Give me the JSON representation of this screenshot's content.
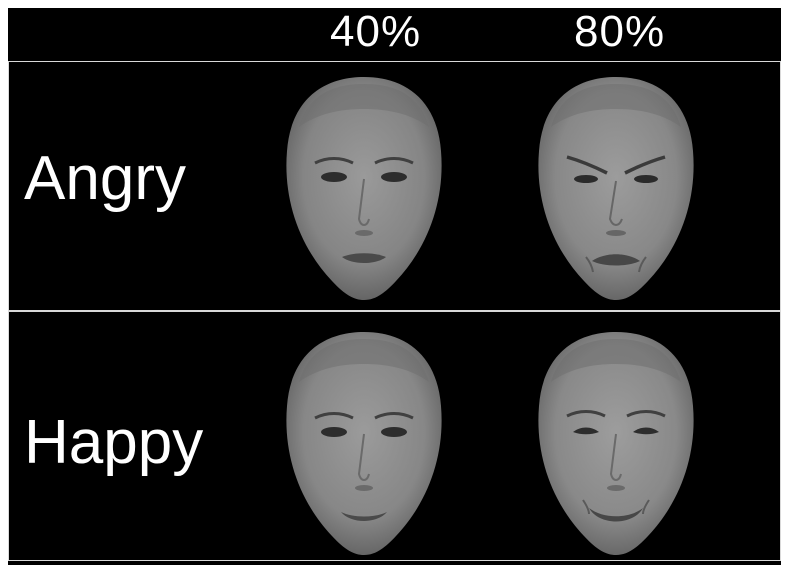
{
  "columns": [
    "40%",
    "80%"
  ],
  "rows": [
    {
      "label": "Angry",
      "faces": [
        {
          "intensity": "40%",
          "expression": "angry",
          "icon": "face-angry-40-icon"
        },
        {
          "intensity": "80%",
          "expression": "angry",
          "icon": "face-angry-80-icon"
        }
      ]
    },
    {
      "label": "Happy",
      "faces": [
        {
          "intensity": "40%",
          "expression": "happy",
          "icon": "face-happy-40-icon"
        },
        {
          "intensity": "80%",
          "expression": "happy",
          "icon": "face-happy-80-icon"
        }
      ]
    }
  ],
  "colors": {
    "background": "#000000",
    "text": "#ffffff",
    "divider": "#d9d9d9",
    "skin": "#8a8a8a"
  }
}
